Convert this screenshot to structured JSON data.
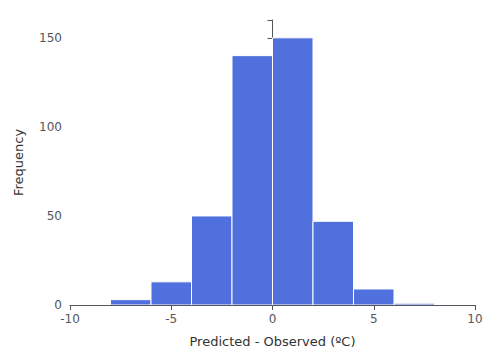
{
  "chart_data": {
    "type": "histogram",
    "bins": [
      -8,
      -6,
      -4,
      -2,
      0,
      2,
      4,
      6,
      8
    ],
    "values": [
      3,
      13,
      50,
      140,
      150,
      47,
      9,
      1
    ],
    "xlim": [
      -10,
      10
    ],
    "xticks": [
      -10,
      -5,
      0,
      5,
      10
    ],
    "ylim": [
      0,
      160
    ],
    "yticks": [
      0,
      50,
      100,
      150
    ],
    "xlabel": "Predicted - Observed (ºC)",
    "ylabel": "Frequency",
    "grid": false
  }
}
